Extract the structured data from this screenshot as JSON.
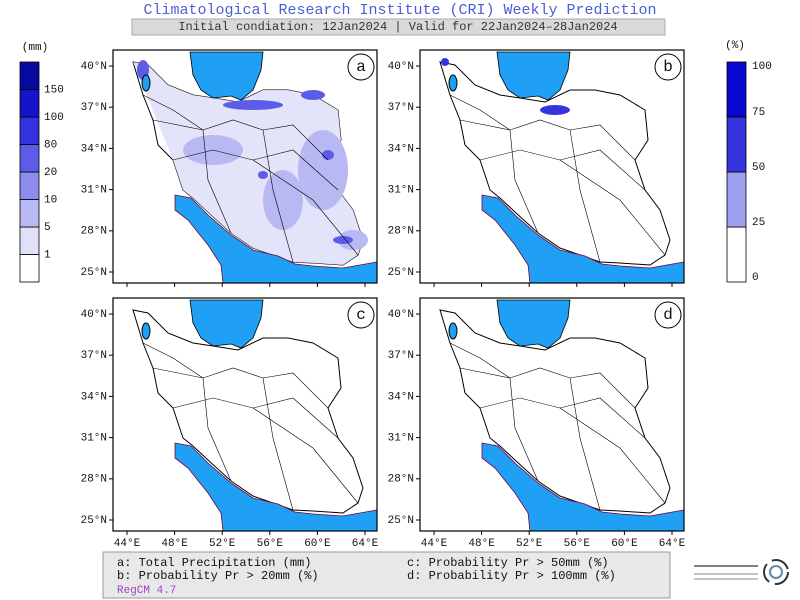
{
  "header": {
    "title": "Climatological Research Institute (CRI) Weekly Prediction",
    "subtitle": "Initial condiation: 12Jan2024 | Valid for 22Jan2024–28Jan2024"
  },
  "colorbars": [
    {
      "unit": "(mm)",
      "labels": [
        "1",
        "5",
        "10",
        "20",
        "80",
        "100",
        "150"
      ]
    },
    {
      "unit": "(%)",
      "labels": [
        "0",
        "25",
        "50",
        "75",
        "100"
      ]
    }
  ],
  "panels": [
    {
      "label": "a"
    },
    {
      "label": "b"
    },
    {
      "label": "c"
    },
    {
      "label": "d"
    }
  ],
  "axes": {
    "lat_labels": [
      "40°N",
      "37°N",
      "34°N",
      "31°N",
      "28°N",
      "25°N"
    ],
    "lon_labels": [
      "44°E",
      "48°E",
      "52°E",
      "56°E",
      "60°E",
      "64°E"
    ]
  },
  "legend": {
    "items": [
      "a: Total Precipitation (mm)",
      "c: Probability Pr > 50mm (%)",
      "b: Probability Pr > 20mm (%)",
      "d: Probability Pr > 100mm (%)"
    ],
    "model": "RegCM 4.7"
  }
}
